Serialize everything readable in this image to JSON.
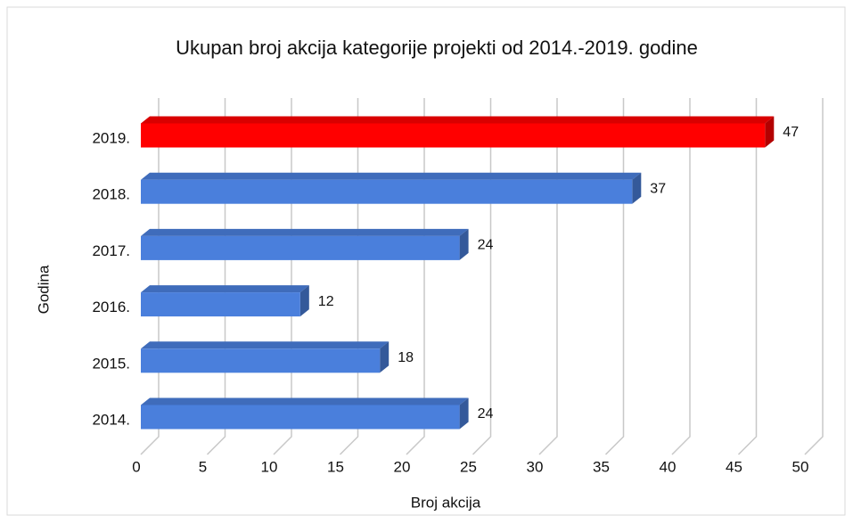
{
  "chart_data": {
    "type": "bar",
    "orientation": "horizontal",
    "title": "Ukupan broj akcija kategorije projekti od 2014.-2019. godine",
    "x_label": "Broj akcija",
    "y_label": "Godina",
    "categories": [
      "2014.",
      "2015.",
      "2016.",
      "2017.",
      "2018.",
      "2019."
    ],
    "values": [
      24,
      18,
      12,
      24,
      37,
      47
    ],
    "colors": [
      "#4a7fdc",
      "#4a7fdc",
      "#4a7fdc",
      "#4a7fdc",
      "#4a7fdc",
      "#ff0000"
    ],
    "xlim": [
      0,
      50
    ],
    "xticks": [
      0,
      5,
      10,
      15,
      20,
      25,
      30,
      35,
      40,
      45,
      50
    ],
    "grid": true
  }
}
